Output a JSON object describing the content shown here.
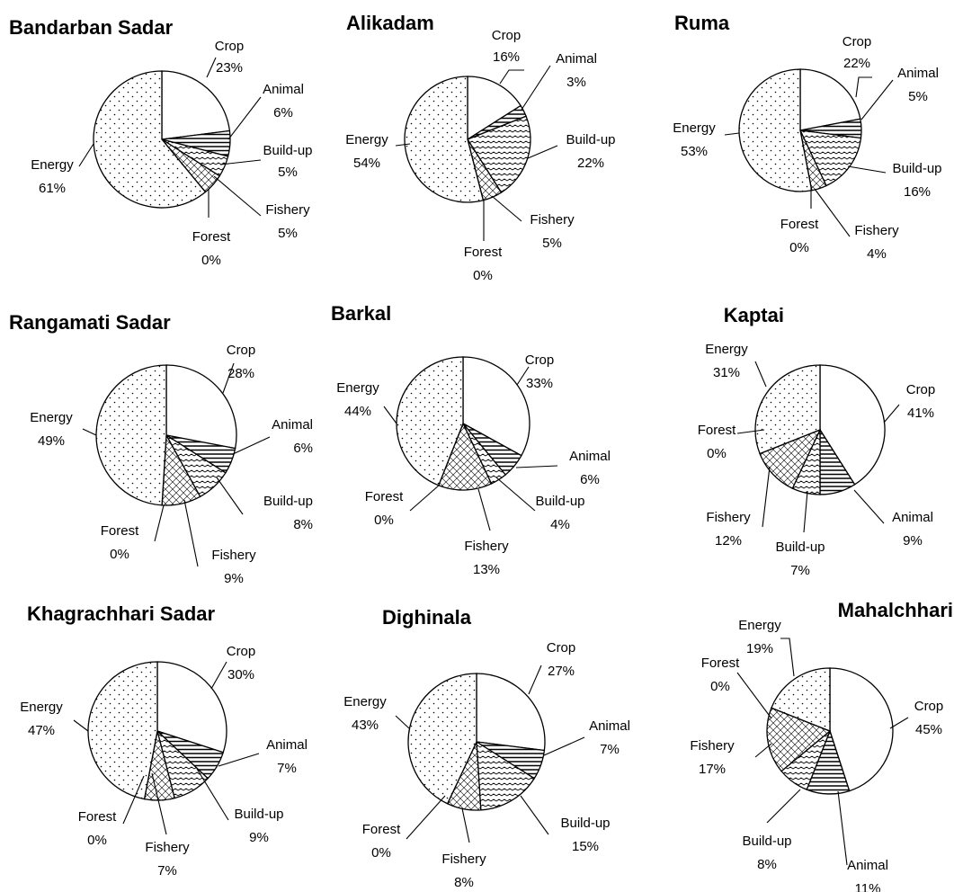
{
  "palette": {
    "ink": "#000000",
    "background": "#ffffff"
  },
  "chart_data": [
    {
      "type": "pie",
      "title": "Bandarban Sadar",
      "categories": [
        "Crop",
        "Animal",
        "Build-up",
        "Fishery",
        "Forest",
        "Energy"
      ],
      "values": [
        23,
        6,
        5,
        5,
        0,
        61
      ],
      "value_labels": [
        "23%",
        "6%",
        "5%",
        "5%",
        "0%",
        "61%"
      ]
    },
    {
      "type": "pie",
      "title": "Alikadam",
      "categories": [
        "Crop",
        "Animal",
        "Build-up",
        "Fishery",
        "Forest",
        "Energy"
      ],
      "values": [
        16,
        3,
        22,
        5,
        0,
        54
      ],
      "value_labels": [
        "16%",
        "3%",
        "22%",
        "5%",
        "0%",
        "54%"
      ]
    },
    {
      "type": "pie",
      "title": "Ruma",
      "categories": [
        "Crop",
        "Animal",
        "Build-up",
        "Fishery",
        "Forest",
        "Energy"
      ],
      "values": [
        22,
        5,
        16,
        4,
        0,
        53
      ],
      "value_labels": [
        "22%",
        "5%",
        "16%",
        "4%",
        "0%",
        "53%"
      ]
    },
    {
      "type": "pie",
      "title": "Rangamati Sadar",
      "categories": [
        "Crop",
        "Animal",
        "Build-up",
        "Fishery",
        "Forest",
        "Energy"
      ],
      "values": [
        28,
        6,
        8,
        9,
        0,
        49
      ],
      "value_labels": [
        "28%",
        "6%",
        "8%",
        "9%",
        "0%",
        "49%"
      ]
    },
    {
      "type": "pie",
      "title": "Barkal",
      "categories": [
        "Crop",
        "Animal",
        "Build-up",
        "Fishery",
        "Forest",
        "Energy"
      ],
      "values": [
        33,
        6,
        4,
        13,
        0,
        44
      ],
      "value_labels": [
        "33%",
        "6%",
        "4%",
        "13%",
        "0%",
        "44%"
      ]
    },
    {
      "type": "pie",
      "title": "Kaptai",
      "categories": [
        "Crop",
        "Animal",
        "Build-up",
        "Fishery",
        "Forest",
        "Energy"
      ],
      "values": [
        41,
        9,
        7,
        12,
        0,
        31
      ],
      "value_labels": [
        "41%",
        "9%",
        "7%",
        "12%",
        "0%",
        "31%"
      ]
    },
    {
      "type": "pie",
      "title": "Khagrachhari Sadar",
      "categories": [
        "Crop",
        "Animal",
        "Build-up",
        "Fishery",
        "Forest",
        "Energy"
      ],
      "values": [
        30,
        7,
        9,
        7,
        0,
        47
      ],
      "value_labels": [
        "30%",
        "7%",
        "9%",
        "7%",
        "0%",
        "47%"
      ]
    },
    {
      "type": "pie",
      "title": "Dighinala",
      "categories": [
        "Crop",
        "Animal",
        "Build-up",
        "Fishery",
        "Forest",
        "Energy"
      ],
      "values": [
        27,
        7,
        15,
        8,
        0,
        43
      ],
      "value_labels": [
        "27%",
        "7%",
        "15%",
        "8%",
        "0%",
        "43%"
      ]
    },
    {
      "type": "pie",
      "title": "Mahalchhari",
      "categories": [
        "Crop",
        "Animal",
        "Build-up",
        "Fishery",
        "Forest",
        "Energy"
      ],
      "values": [
        45,
        11,
        8,
        17,
        0,
        19
      ],
      "value_labels": [
        "45%",
        "11%",
        "8%",
        "17%",
        "0%",
        "19%"
      ]
    }
  ]
}
